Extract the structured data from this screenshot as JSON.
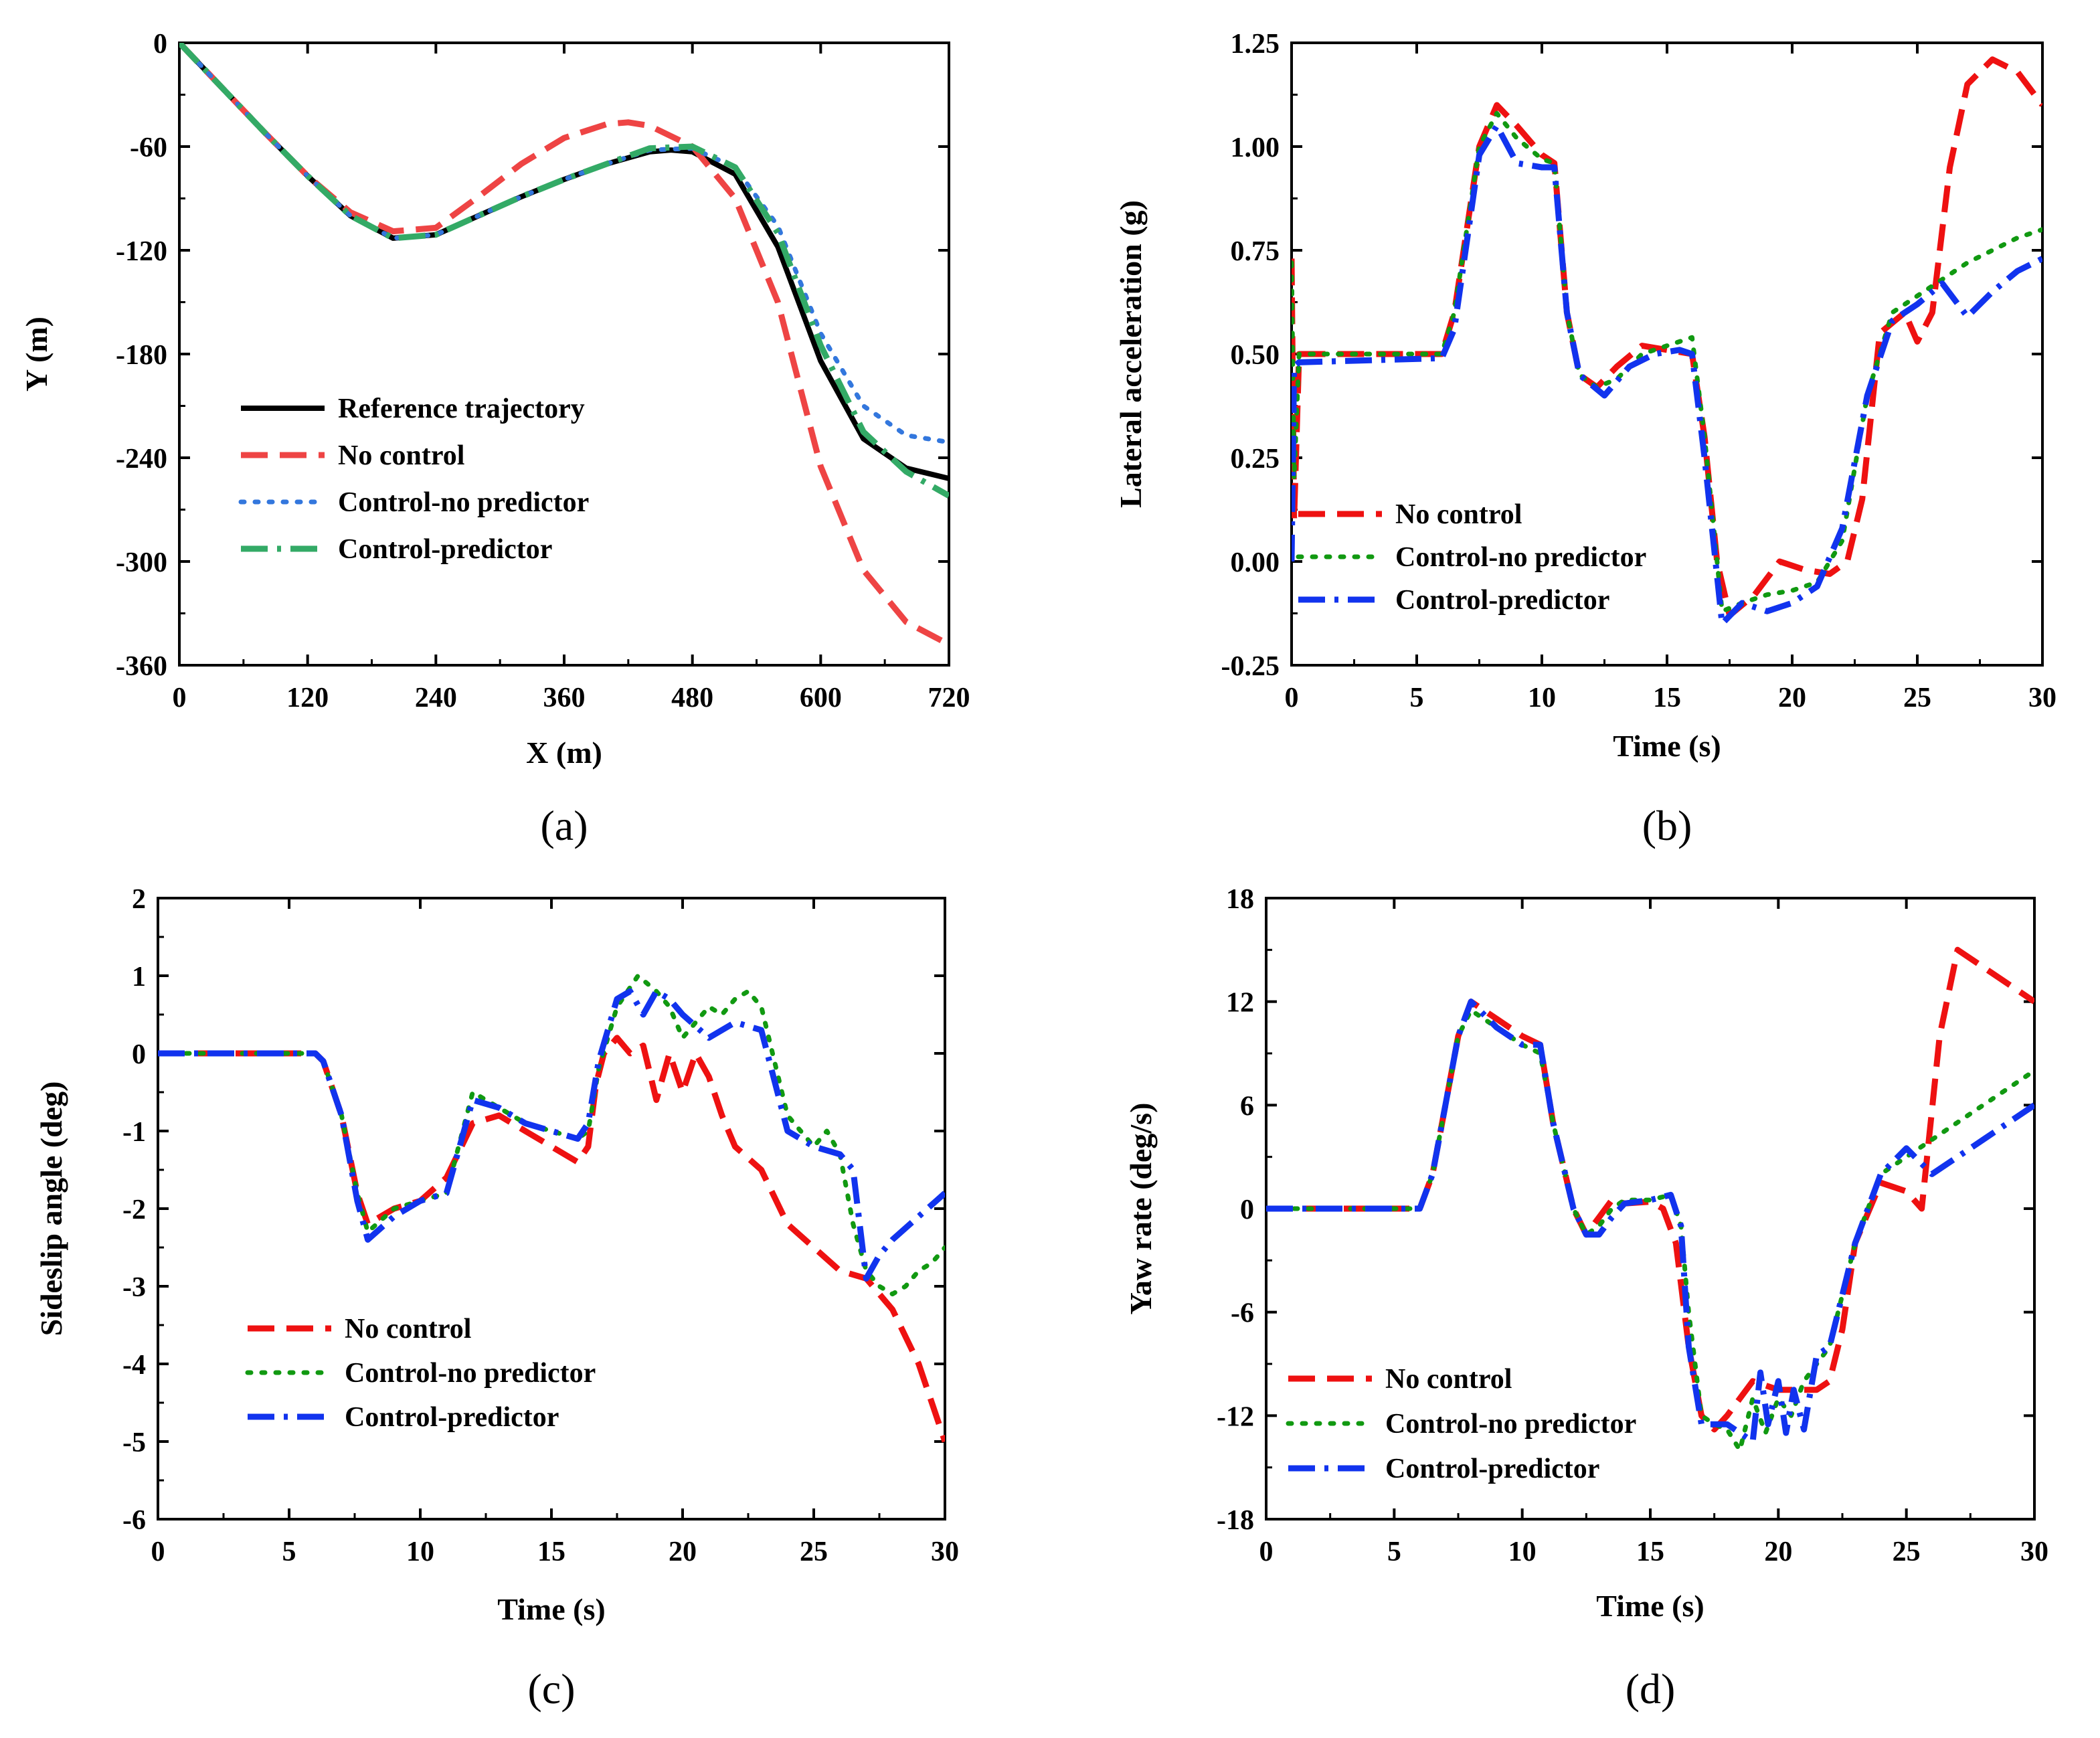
{
  "chart_data": [
    {
      "type": "line",
      "panel_label": "(a)",
      "xlabel": "X (m)",
      "ylabel": "Y (m)",
      "xlim": [
        0,
        720
      ],
      "ylim": [
        -360,
        0
      ],
      "xticks": [
        0,
        120,
        240,
        360,
        480,
        600,
        720
      ],
      "yticks": [
        0,
        -60,
        -120,
        -180,
        -240,
        -300,
        -360
      ],
      "legend_position": "center-left",
      "series": [
        {
          "name": "Reference trajectory",
          "color": "#000000",
          "style": "solid",
          "x": [
            0,
            40,
            80,
            120,
            160,
            200,
            240,
            280,
            320,
            360,
            400,
            440,
            460,
            480,
            520,
            560,
            600,
            640,
            680,
            720
          ],
          "y": [
            0,
            -26,
            -52,
            -77,
            -100,
            -113,
            -111,
            -100,
            -89,
            -79,
            -70,
            -63,
            -62,
            -63,
            -76,
            -118,
            -184,
            -229,
            -246,
            -252
          ]
        },
        {
          "name": "No control",
          "color": "#ee4444",
          "style": "dashed",
          "x": [
            0,
            40,
            80,
            120,
            160,
            200,
            240,
            280,
            320,
            360,
            400,
            420,
            440,
            480,
            520,
            560,
            600,
            640,
            680,
            720
          ],
          "y": [
            0,
            -26,
            -52,
            -77,
            -98,
            -109,
            -107,
            -89,
            -70,
            -55,
            -47,
            -46,
            -48,
            -60,
            -90,
            -150,
            -245,
            -305,
            -335,
            -348
          ]
        },
        {
          "name": "Control-no predictor",
          "color": "#3377dd",
          "style": "dotted",
          "x": [
            0,
            40,
            80,
            120,
            160,
            200,
            240,
            280,
            320,
            360,
            400,
            440,
            480,
            520,
            560,
            600,
            640,
            680,
            720
          ],
          "y": [
            0,
            -26,
            -52,
            -77,
            -100,
            -113,
            -111,
            -100,
            -89,
            -79,
            -70,
            -62,
            -61,
            -72,
            -106,
            -168,
            -210,
            -227,
            -231
          ]
        },
        {
          "name": "Control-predictor",
          "color": "#33aa66",
          "style": "dashdot",
          "x": [
            0,
            40,
            80,
            120,
            160,
            200,
            240,
            280,
            320,
            360,
            400,
            440,
            480,
            520,
            560,
            600,
            640,
            680,
            720
          ],
          "y": [
            0,
            -26,
            -52,
            -77,
            -100,
            -113,
            -111,
            -100,
            -89,
            -79,
            -70,
            -61,
            -60,
            -72,
            -110,
            -175,
            -225,
            -248,
            -262
          ]
        }
      ]
    },
    {
      "type": "line",
      "panel_label": "(b)",
      "xlabel": "Time (s)",
      "ylabel": "Lateral acceleration (g)",
      "xlim": [
        0,
        30
      ],
      "ylim": [
        -0.25,
        1.25
      ],
      "xticks": [
        0,
        5,
        10,
        15,
        20,
        25,
        30
      ],
      "yticks": [
        -0.25,
        0.0,
        0.25,
        0.5,
        0.75,
        1.0,
        1.25
      ],
      "ytick_labels": [
        "-0.25",
        "0.00",
        "0.25",
        "0.50",
        "0.75",
        "1.00",
        "1.25"
      ],
      "legend_position": "lower-left",
      "series": [
        {
          "name": "No control",
          "color": "#ee1111",
          "style": "dashed",
          "x": [
            0,
            0.1,
            0.3,
            6,
            6.5,
            7.5,
            8.2,
            9,
            10,
            10.5,
            11,
            11.5,
            12.2,
            13,
            14,
            15,
            16,
            16.5,
            17,
            17.5,
            18.5,
            19.5,
            20.5,
            21.5,
            22.2,
            22.8,
            23.5,
            24.5,
            25,
            25.6,
            26.3,
            27,
            28,
            29,
            30
          ],
          "y": [
            0.73,
            0.1,
            0.5,
            0.5,
            0.6,
            1.0,
            1.1,
            1.05,
            0.98,
            0.96,
            0.6,
            0.45,
            0.42,
            0.47,
            0.52,
            0.51,
            0.5,
            0.3,
            0.0,
            -0.13,
            -0.08,
            0.0,
            -0.02,
            -0.03,
            0.0,
            0.15,
            0.55,
            0.6,
            0.53,
            0.6,
            0.95,
            1.15,
            1.21,
            1.18,
            1.1
          ]
        },
        {
          "name": "Control-no predictor",
          "color": "#119911",
          "style": "dotted",
          "x": [
            0,
            0.1,
            0.3,
            6,
            6.5,
            7.5,
            8.2,
            9,
            10,
            10.5,
            11,
            11.5,
            12.2,
            13,
            14,
            15,
            16,
            16.5,
            17.2,
            18,
            19,
            20,
            21,
            22,
            23,
            24,
            25,
            26,
            27,
            28,
            29,
            30
          ],
          "y": [
            0.72,
            0.2,
            0.5,
            0.5,
            0.6,
            1.0,
            1.08,
            1.02,
            0.97,
            0.96,
            0.6,
            0.45,
            0.42,
            0.44,
            0.5,
            0.52,
            0.54,
            0.3,
            -0.12,
            -0.1,
            -0.08,
            -0.07,
            -0.05,
            0.05,
            0.4,
            0.6,
            0.64,
            0.68,
            0.72,
            0.75,
            0.78,
            0.8
          ]
        },
        {
          "name": "Control-predictor",
          "color": "#1133ee",
          "style": "dashdot",
          "x": [
            0,
            0.1,
            0.3,
            6,
            6.5,
            7.5,
            8.2,
            9,
            10,
            10.5,
            11,
            11.5,
            12.5,
            13.5,
            14.5,
            15.5,
            16,
            16.5,
            17.2,
            18,
            19,
            20,
            21,
            22,
            23,
            24,
            25,
            26,
            27,
            28,
            29,
            30
          ],
          "y": [
            0.0,
            0.47,
            0.48,
            0.49,
            0.56,
            0.98,
            1.05,
            0.96,
            0.95,
            0.95,
            0.6,
            0.45,
            0.4,
            0.47,
            0.5,
            0.51,
            0.5,
            0.25,
            -0.15,
            -0.1,
            -0.12,
            -0.1,
            -0.06,
            0.08,
            0.4,
            0.58,
            0.62,
            0.67,
            0.59,
            0.65,
            0.7,
            0.73
          ]
        }
      ]
    },
    {
      "type": "line",
      "panel_label": "(c)",
      "xlabel": "Time (s)",
      "ylabel": "Sideslip angle (deg)",
      "xlim": [
        0,
        30
      ],
      "ylim": [
        -6,
        2
      ],
      "xticks": [
        0,
        5,
        10,
        15,
        20,
        25,
        30
      ],
      "yticks": [
        -6,
        -5,
        -4,
        -3,
        -2,
        -1,
        0,
        1,
        2
      ],
      "legend_position": "lower-left",
      "series": [
        {
          "name": "No control",
          "color": "#ee1111",
          "style": "dashed",
          "x": [
            0,
            6,
            6.3,
            7,
            7.6,
            8,
            9,
            10,
            11,
            12,
            13,
            14,
            15,
            16,
            16.4,
            16.7,
            17,
            17.5,
            18,
            18.5,
            19,
            19.5,
            20,
            20.5,
            21,
            21.5,
            22,
            23,
            24,
            25,
            26,
            27,
            28,
            29,
            30
          ],
          "y": [
            0,
            0,
            -0.1,
            -0.8,
            -1.8,
            -2.2,
            -2.0,
            -1.9,
            -1.6,
            -0.9,
            -0.8,
            -1.0,
            -1.2,
            -1.4,
            -1.2,
            -0.4,
            0.0,
            0.2,
            0.0,
            0.1,
            -0.6,
            0.0,
            -0.5,
            0.0,
            -0.3,
            -0.8,
            -1.2,
            -1.5,
            -2.2,
            -2.5,
            -2.8,
            -2.9,
            -3.3,
            -4.0,
            -5.0
          ]
        },
        {
          "name": "Control-no predictor",
          "color": "#119911",
          "style": "dotted",
          "x": [
            0,
            6,
            6.3,
            7,
            7.6,
            8,
            9,
            10,
            11,
            12,
            13,
            14,
            15,
            16,
            16.4,
            16.8,
            17.5,
            18.3,
            19,
            19.5,
            20,
            20.5,
            21,
            21.5,
            22,
            22.5,
            23,
            24,
            25,
            25.5,
            26,
            26.5,
            27,
            27.5,
            28,
            28.5,
            29,
            29.5,
            30
          ],
          "y": [
            0,
            0,
            -0.1,
            -0.8,
            -1.8,
            -2.3,
            -2.0,
            -1.9,
            -1.8,
            -0.5,
            -0.7,
            -0.9,
            -1.0,
            -1.1,
            -1.0,
            -0.2,
            0.6,
            1.0,
            0.8,
            0.6,
            0.2,
            0.4,
            0.6,
            0.5,
            0.7,
            0.8,
            0.6,
            -0.8,
            -1.2,
            -1.0,
            -1.3,
            -2.2,
            -2.8,
            -3.0,
            -3.1,
            -3.0,
            -2.8,
            -2.7,
            -2.5
          ]
        },
        {
          "name": "Control-predictor",
          "color": "#1133ee",
          "style": "dashdot",
          "x": [
            0,
            6,
            6.3,
            7,
            7.6,
            8,
            9,
            10,
            11,
            12,
            13,
            14,
            15,
            16,
            16.4,
            16.8,
            17.5,
            18,
            18.5,
            19,
            19.5,
            20,
            21,
            22,
            23,
            24,
            25,
            26,
            26.5,
            27,
            27.5,
            28,
            29,
            30
          ],
          "y": [
            0,
            0,
            -0.1,
            -0.8,
            -1.9,
            -2.4,
            -2.1,
            -1.9,
            -1.8,
            -0.6,
            -0.7,
            -0.9,
            -1.0,
            -1.1,
            -0.9,
            -0.1,
            0.7,
            0.8,
            0.5,
            0.8,
            0.7,
            0.5,
            0.2,
            0.4,
            0.3,
            -1.0,
            -1.2,
            -1.3,
            -1.5,
            -2.9,
            -2.6,
            -2.4,
            -2.1,
            -1.8
          ]
        }
      ]
    },
    {
      "type": "line",
      "panel_label": "(d)",
      "xlabel": "Time (s)",
      "ylabel": "Yaw rate (deg/s)",
      "xlim": [
        0,
        30
      ],
      "ylim": [
        -18,
        18
      ],
      "xticks": [
        0,
        5,
        10,
        15,
        20,
        25,
        30
      ],
      "yticks": [
        -18,
        -12,
        -6,
        0,
        6,
        12,
        18
      ],
      "legend_position": "lower-left",
      "series": [
        {
          "name": "No control",
          "color": "#ee1111",
          "style": "dashed",
          "x": [
            0,
            6,
            6.5,
            7.5,
            8,
            9,
            10,
            10.7,
            11.2,
            12,
            12.5,
            13,
            13.5,
            14,
            15,
            15.5,
            16,
            16.5,
            17,
            17.5,
            18,
            19,
            20,
            21,
            21.5,
            22,
            22.5,
            23,
            24,
            25,
            25.6,
            26.3,
            27,
            28,
            29,
            30
          ],
          "y": [
            0,
            0,
            2,
            10,
            12,
            11,
            10,
            9.5,
            5,
            0,
            -1.5,
            -0.5,
            0.5,
            0.3,
            0.4,
            0.0,
            -2,
            -8,
            -12,
            -12.8,
            -12,
            -10,
            -10.5,
            -10.5,
            -10.5,
            -10,
            -7,
            -2,
            1.5,
            1.0,
            0.0,
            10,
            15,
            14,
            13,
            12
          ]
        },
        {
          "name": "Control-no predictor",
          "color": "#119911",
          "style": "dotted",
          "x": [
            0,
            6,
            6.5,
            7.5,
            8,
            9,
            10,
            10.7,
            11.2,
            12,
            12.5,
            13,
            13.5,
            14,
            15,
            15.8,
            16.2,
            16.5,
            17,
            17.5,
            18,
            18.5,
            19,
            19.5,
            20,
            20.5,
            21,
            21.5,
            22,
            23,
            24,
            25,
            26,
            27,
            28,
            29,
            30
          ],
          "y": [
            0,
            0,
            2,
            10,
            11.5,
            10.5,
            9.5,
            9.0,
            5,
            0,
            -1.5,
            -1.0,
            0.0,
            0.5,
            0.5,
            0.8,
            -1,
            -6,
            -12,
            -12.5,
            -12.8,
            -14,
            -11,
            -13,
            -11,
            -12,
            -10,
            -9,
            -8,
            -2,
            2,
            3,
            4,
            5,
            6,
            7,
            8
          ]
        },
        {
          "name": "Control-predictor",
          "color": "#1133ee",
          "style": "dashdot",
          "x": [
            0,
            6,
            6.5,
            7.5,
            8,
            9,
            10,
            10.7,
            11.2,
            12,
            12.5,
            13,
            13.5,
            14,
            15,
            15.8,
            16.2,
            16.5,
            17,
            17.5,
            18,
            18.5,
            19,
            19.3,
            19.6,
            20,
            20.3,
            20.6,
            21,
            21.5,
            22,
            23,
            24,
            25,
            26,
            27,
            28,
            29,
            30
          ],
          "y": [
            0,
            0,
            2,
            10,
            12,
            10.5,
            9.5,
            9.5,
            5,
            0,
            -1.5,
            -1.5,
            -0.5,
            0.3,
            0.5,
            0.8,
            -1,
            -8,
            -12.5,
            -12.5,
            -12.5,
            -13,
            -13.5,
            -9.5,
            -12.5,
            -10,
            -13,
            -10.5,
            -12.8,
            -8.5,
            -8.0,
            -2,
            2,
            3.5,
            2,
            3,
            4,
            5,
            6
          ]
        }
      ]
    }
  ]
}
